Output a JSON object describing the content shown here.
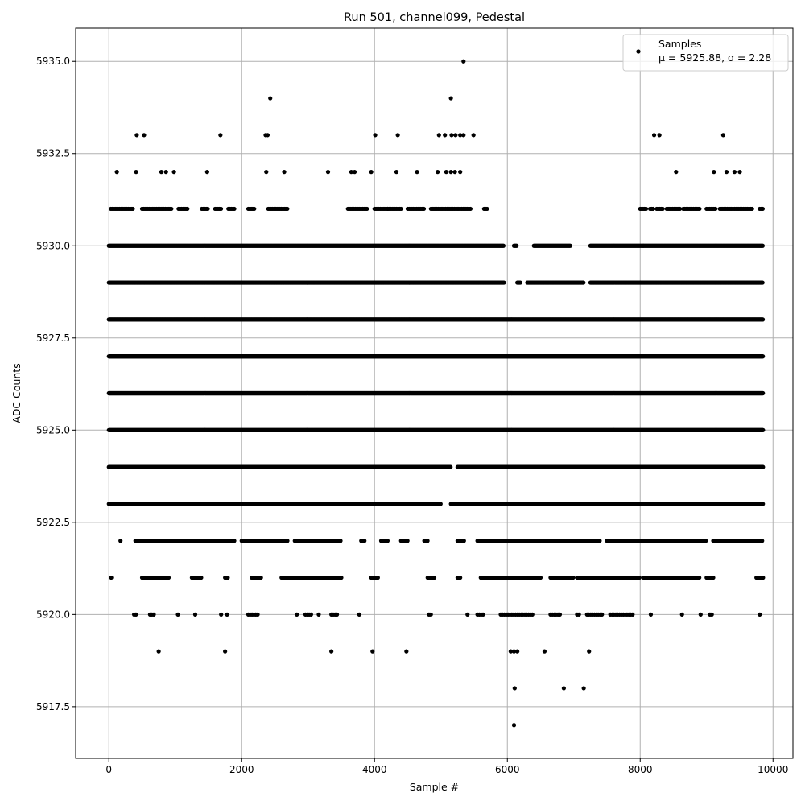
{
  "chart_data": {
    "type": "scatter",
    "title": "Run 501, channel099, Pedestal",
    "xlabel": "Sample #",
    "ylabel": "ADC Counts",
    "xlim": [
      -500,
      10300
    ],
    "ylim": [
      5916.1,
      5935.9
    ],
    "xticks": [
      0,
      2000,
      4000,
      6000,
      8000,
      10000
    ],
    "xtick_labels": [
      "0",
      "2000",
      "4000",
      "6000",
      "8000",
      "10000"
    ],
    "yticks": [
      5917.5,
      5920.0,
      5922.5,
      5925.0,
      5927.5,
      5930.0,
      5932.5,
      5935.0
    ],
    "ytick_labels": [
      "5917.5",
      "5920.0",
      "5922.5",
      "5925.0",
      "5927.5",
      "5930.0",
      "5932.5",
      "5935.0"
    ],
    "grid": true,
    "legend": {
      "position": "top-right",
      "series_name": "Samples",
      "stats_label": "μ = 5925.88, σ = 2.28",
      "marker_color": "#000000"
    },
    "marker_color": "#000000",
    "series": [
      {
        "name": "Samples",
        "mean": 5925.88,
        "std": 2.28,
        "points": [
          [
            5340,
            5935
          ],
          [
            2430,
            5934
          ],
          [
            5150,
            5934
          ],
          [
            420,
            5933
          ],
          [
            530,
            5933
          ],
          [
            1680,
            5933
          ],
          [
            2360,
            5933
          ],
          [
            2390,
            5933
          ],
          [
            4010,
            5933
          ],
          [
            4350,
            5933
          ],
          [
            4970,
            5933
          ],
          [
            5060,
            5933
          ],
          [
            5160,
            5933
          ],
          [
            5220,
            5933
          ],
          [
            5290,
            5933
          ],
          [
            5340,
            5933
          ],
          [
            5490,
            5933
          ],
          [
            8210,
            5933
          ],
          [
            8290,
            5933
          ],
          [
            9250,
            5933
          ],
          [
            120,
            5932
          ],
          [
            410,
            5932
          ],
          [
            790,
            5932
          ],
          [
            860,
            5932
          ],
          [
            980,
            5932
          ],
          [
            1480,
            5932
          ],
          [
            2370,
            5932
          ],
          [
            2640,
            5932
          ],
          [
            3300,
            5932
          ],
          [
            3650,
            5932
          ],
          [
            3700,
            5932
          ],
          [
            3950,
            5932
          ],
          [
            4330,
            5932
          ],
          [
            4640,
            5932
          ],
          [
            4950,
            5932
          ],
          [
            5080,
            5932
          ],
          [
            5150,
            5932
          ],
          [
            5210,
            5932
          ],
          [
            5290,
            5932
          ],
          [
            8540,
            5932
          ],
          [
            9110,
            5932
          ],
          [
            9300,
            5932
          ],
          [
            9420,
            5932
          ],
          [
            9500,
            5932
          ]
        ],
        "density_rows": [
          {
            "y": 5931,
            "ranges": [
              [
                30,
                360
              ],
              [
                500,
                950
              ],
              [
                1050,
                1200
              ],
              [
                1400,
                1500
              ],
              [
                1600,
                1700
              ],
              [
                1800,
                1900
              ],
              [
                2100,
                2200
              ],
              [
                2400,
                2700
              ],
              [
                3600,
                3900
              ],
              [
                4000,
                4200
              ],
              [
                4200,
                4400
              ],
              [
                4500,
                4750
              ],
              [
                4850,
                5450
              ],
              [
                5650,
                5700
              ],
              [
                8000,
                8100
              ],
              [
                8150,
                8200
              ],
              [
                8250,
                8350
              ],
              [
                8400,
                8600
              ],
              [
                8650,
                8900
              ],
              [
                9000,
                9150
              ],
              [
                9200,
                9700
              ],
              [
                9800,
                9850
              ]
            ],
            "step": 22
          },
          {
            "y": 5930,
            "ranges": [
              [
                0,
                5950
              ],
              [
                6100,
                6150
              ],
              [
                6400,
                6950
              ],
              [
                7250,
                8050
              ],
              [
                8050,
                9850
              ]
            ],
            "step": 13
          },
          {
            "y": 5929,
            "ranges": [
              [
                0,
                5950
              ],
              [
                6150,
                6200
              ],
              [
                6300,
                7150
              ],
              [
                7250,
                9850
              ]
            ],
            "step": 9
          },
          {
            "y": 5928,
            "ranges": [
              [
                0,
                9850
              ]
            ],
            "step": 6
          },
          {
            "y": 5927,
            "ranges": [
              [
                0,
                9850
              ]
            ],
            "step": 4
          },
          {
            "y": 5926,
            "ranges": [
              [
                0,
                9850
              ]
            ],
            "step": 4
          },
          {
            "y": 5925,
            "ranges": [
              [
                0,
                9850
              ]
            ],
            "step": 5
          },
          {
            "y": 5924,
            "ranges": [
              [
                0,
                5150
              ],
              [
                5250,
                9850
              ]
            ],
            "step": 7
          },
          {
            "y": 5923,
            "ranges": [
              [
                0,
                5000
              ],
              [
                5150,
                9850
              ]
            ],
            "step": 9
          },
          {
            "y": 5922,
            "ranges": [
              [
                170,
                180
              ],
              [
                400,
                1900
              ],
              [
                2000,
                2700
              ],
              [
                2800,
                3500
              ],
              [
                3800,
                3850
              ],
              [
                4100,
                4200
              ],
              [
                4400,
                4500
              ],
              [
                4750,
                4800
              ],
              [
                5250,
                5350
              ],
              [
                5550,
                7400
              ],
              [
                7500,
                9000
              ],
              [
                9100,
                9850
              ]
            ],
            "step": 16
          },
          {
            "y": 5921,
            "ranges": [
              [
                30,
                40
              ],
              [
                500,
                900
              ],
              [
                1250,
                1400
              ],
              [
                1750,
                1800
              ],
              [
                2150,
                2300
              ],
              [
                2600,
                3500
              ],
              [
                3950,
                4050
              ],
              [
                4800,
                4900
              ],
              [
                5250,
                5300
              ],
              [
                5600,
                6500
              ],
              [
                6650,
                7000
              ],
              [
                7050,
                8000
              ],
              [
                8050,
                8900
              ],
              [
                9000,
                9100
              ],
              [
                9750,
                9850
              ]
            ],
            "step": 20
          },
          {
            "y": 5920,
            "ranges": [
              [
                380,
                420
              ],
              [
                620,
                680
              ],
              [
                1030,
                1050
              ],
              [
                1290,
                1310
              ],
              [
                1680,
                1700
              ],
              [
                1770,
                1790
              ],
              [
                2100,
                2250
              ],
              [
                2820,
                2840
              ],
              [
                2960,
                3050
              ],
              [
                3150,
                3170
              ],
              [
                3350,
                3450
              ],
              [
                3760,
                3780
              ],
              [
                4820,
                4860
              ],
              [
                5390,
                5410
              ],
              [
                5550,
                5650
              ],
              [
                5900,
                6400
              ],
              [
                6650,
                6800
              ],
              [
                7050,
                7100
              ],
              [
                7200,
                7450
              ],
              [
                7550,
                7900
              ],
              [
                8150,
                8170
              ],
              [
                8620,
                8640
              ],
              [
                8900,
                8920
              ],
              [
                9050,
                9100
              ],
              [
                9790,
                9810
              ]
            ],
            "step": 28
          }
        ],
        "extra_points": [
          [
            750,
            5919
          ],
          [
            1750,
            5919
          ],
          [
            3350,
            5919
          ],
          [
            3970,
            5919
          ],
          [
            4480,
            5919
          ],
          [
            6050,
            5919
          ],
          [
            6100,
            5919
          ],
          [
            6150,
            5919
          ],
          [
            6560,
            5919
          ],
          [
            7230,
            5919
          ],
          [
            6110,
            5918
          ],
          [
            6850,
            5918
          ],
          [
            7150,
            5918
          ],
          [
            6100,
            5917
          ]
        ]
      }
    ]
  }
}
